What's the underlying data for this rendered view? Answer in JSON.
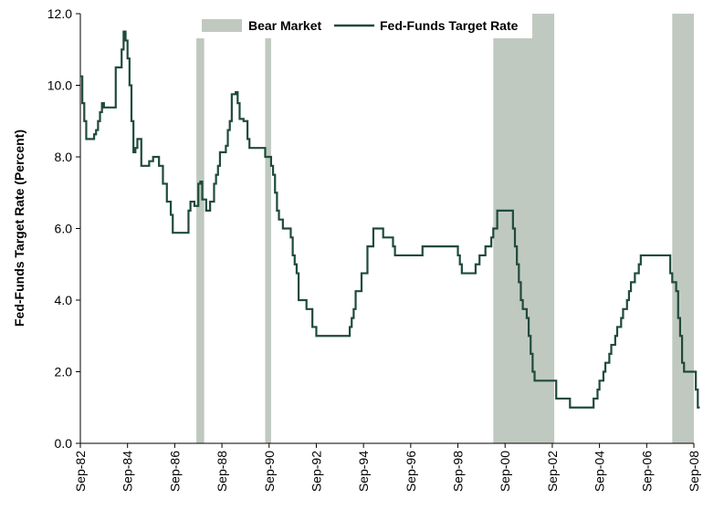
{
  "chart_data": {
    "type": "line",
    "ylabel": "Fed-Funds Target Rate (Percent)",
    "xlabel": "",
    "ylim": [
      0,
      12
    ],
    "xlim": [
      "1982-09",
      "2008-09"
    ],
    "y_ticks": [
      "0.0",
      "2.0",
      "4.0",
      "6.0",
      "8.0",
      "10.0",
      "12.0"
    ],
    "x_tick_labels": [
      "Sep-82",
      "Sep-84",
      "Sep-86",
      "Sep-88",
      "Sep-90",
      "Sep-92",
      "Sep-94",
      "Sep-96",
      "Sep-98",
      "Sep-00",
      "Sep-02",
      "Sep-04",
      "Sep-06",
      "Sep-08"
    ],
    "grid": false,
    "legend_position": "top",
    "legend": [
      {
        "label": "Bear Market",
        "kind": "shaded-band",
        "color": "#c0c9c0"
      },
      {
        "label": "Fed-Funds Target Rate",
        "kind": "line",
        "color": "#1f4a3d"
      }
    ],
    "bear_markets": [
      {
        "start": "1987-08",
        "end": "1987-12"
      },
      {
        "start": "1990-07",
        "end": "1990-10"
      },
      {
        "start": "2000-03",
        "end": "2002-10"
      },
      {
        "start": "2007-10",
        "end": "2008-11"
      }
    ],
    "series": [
      {
        "name": "Fed-Funds Target Rate",
        "color": "#1f4a3d",
        "step": true,
        "points": [
          [
            "1982-09",
            10.25
          ],
          [
            "1982-10",
            9.5
          ],
          [
            "1982-11",
            9.0
          ],
          [
            "1982-12",
            8.5
          ],
          [
            "1983-04",
            8.63
          ],
          [
            "1983-05",
            8.75
          ],
          [
            "1983-06",
            9.0
          ],
          [
            "1983-07",
            9.25
          ],
          [
            "1983-08",
            9.5
          ],
          [
            "1983-09",
            9.38
          ],
          [
            "1984-03",
            10.5
          ],
          [
            "1984-06",
            11.0
          ],
          [
            "1984-07",
            11.5
          ],
          [
            "1984-08",
            11.25
          ],
          [
            "1984-09",
            10.75
          ],
          [
            "1984-10",
            10.0
          ],
          [
            "1984-11",
            9.0
          ],
          [
            "1984-12",
            8.13
          ],
          [
            "1985-01",
            8.25
          ],
          [
            "1985-02",
            8.5
          ],
          [
            "1985-04",
            7.75
          ],
          [
            "1985-06",
            7.75
          ],
          [
            "1985-08",
            7.88
          ],
          [
            "1985-10",
            8.0
          ],
          [
            "1986-01",
            7.75
          ],
          [
            "1986-03",
            7.25
          ],
          [
            "1986-05",
            6.75
          ],
          [
            "1986-07",
            6.38
          ],
          [
            "1986-08",
            5.88
          ],
          [
            "1987-04",
            6.5
          ],
          [
            "1987-05",
            6.75
          ],
          [
            "1987-07",
            6.63
          ],
          [
            "1987-09",
            7.25
          ],
          [
            "1987-10",
            7.31
          ],
          [
            "1987-11",
            6.81
          ],
          [
            "1988-01",
            6.5
          ],
          [
            "1988-03",
            6.75
          ],
          [
            "1988-05",
            7.25
          ],
          [
            "1988-06",
            7.5
          ],
          [
            "1988-07",
            7.75
          ],
          [
            "1988-08",
            8.13
          ],
          [
            "1988-11",
            8.31
          ],
          [
            "1988-12",
            8.75
          ],
          [
            "1989-01",
            9.0
          ],
          [
            "1989-02",
            9.75
          ],
          [
            "1989-04",
            9.81
          ],
          [
            "1989-05",
            9.5
          ],
          [
            "1989-06",
            9.06
          ],
          [
            "1989-08",
            9.0
          ],
          [
            "1989-10",
            8.5
          ],
          [
            "1989-11",
            8.25
          ],
          [
            "1990-07",
            8.0
          ],
          [
            "1990-10",
            7.75
          ],
          [
            "1990-11",
            7.5
          ],
          [
            "1990-12",
            7.0
          ],
          [
            "1991-01",
            6.5
          ],
          [
            "1991-02",
            6.25
          ],
          [
            "1991-04",
            6.0
          ],
          [
            "1991-08",
            5.75
          ],
          [
            "1991-09",
            5.25
          ],
          [
            "1991-10",
            5.0
          ],
          [
            "1991-11",
            4.75
          ],
          [
            "1991-12",
            4.0
          ],
          [
            "1992-04",
            3.75
          ],
          [
            "1992-07",
            3.25
          ],
          [
            "1992-09",
            3.0
          ],
          [
            "1994-02",
            3.25
          ],
          [
            "1994-03",
            3.5
          ],
          [
            "1994-04",
            3.75
          ],
          [
            "1994-05",
            4.25
          ],
          [
            "1994-08",
            4.75
          ],
          [
            "1994-11",
            5.5
          ],
          [
            "1995-02",
            6.0
          ],
          [
            "1995-07",
            5.75
          ],
          [
            "1995-12",
            5.5
          ],
          [
            "1996-01",
            5.25
          ],
          [
            "1997-03",
            5.5
          ],
          [
            "1998-09",
            5.25
          ],
          [
            "1998-10",
            5.0
          ],
          [
            "1998-11",
            4.75
          ],
          [
            "1999-06",
            5.0
          ],
          [
            "1999-08",
            5.25
          ],
          [
            "1999-11",
            5.5
          ],
          [
            "2000-02",
            5.75
          ],
          [
            "2000-03",
            6.0
          ],
          [
            "2000-05",
            6.5
          ],
          [
            "2001-01",
            6.0
          ],
          [
            "2001-02",
            5.5
          ],
          [
            "2001-03",
            5.0
          ],
          [
            "2001-04",
            4.5
          ],
          [
            "2001-05",
            4.0
          ],
          [
            "2001-06",
            3.75
          ],
          [
            "2001-08",
            3.5
          ],
          [
            "2001-09",
            3.0
          ],
          [
            "2001-10",
            2.5
          ],
          [
            "2001-11",
            2.0
          ],
          [
            "2001-12",
            1.75
          ],
          [
            "2002-11",
            1.25
          ],
          [
            "2003-06",
            1.0
          ],
          [
            "2004-06",
            1.25
          ],
          [
            "2004-08",
            1.5
          ],
          [
            "2004-09",
            1.75
          ],
          [
            "2004-11",
            2.0
          ],
          [
            "2004-12",
            2.25
          ],
          [
            "2005-02",
            2.5
          ],
          [
            "2005-03",
            2.75
          ],
          [
            "2005-05",
            3.0
          ],
          [
            "2005-06",
            3.25
          ],
          [
            "2005-08",
            3.5
          ],
          [
            "2005-09",
            3.75
          ],
          [
            "2005-11",
            4.0
          ],
          [
            "2005-12",
            4.25
          ],
          [
            "2006-01",
            4.5
          ],
          [
            "2006-03",
            4.75
          ],
          [
            "2006-05",
            5.0
          ],
          [
            "2006-06",
            5.25
          ],
          [
            "2007-09",
            4.75
          ],
          [
            "2007-10",
            4.5
          ],
          [
            "2007-12",
            4.25
          ],
          [
            "2008-01",
            3.5
          ],
          [
            "2008-02",
            3.0
          ],
          [
            "2008-03",
            2.25
          ],
          [
            "2008-04",
            2.0
          ],
          [
            "2008-10",
            1.5
          ],
          [
            "2008-11",
            1.0
          ],
          [
            "2008-12",
            1.0
          ]
        ]
      }
    ]
  }
}
